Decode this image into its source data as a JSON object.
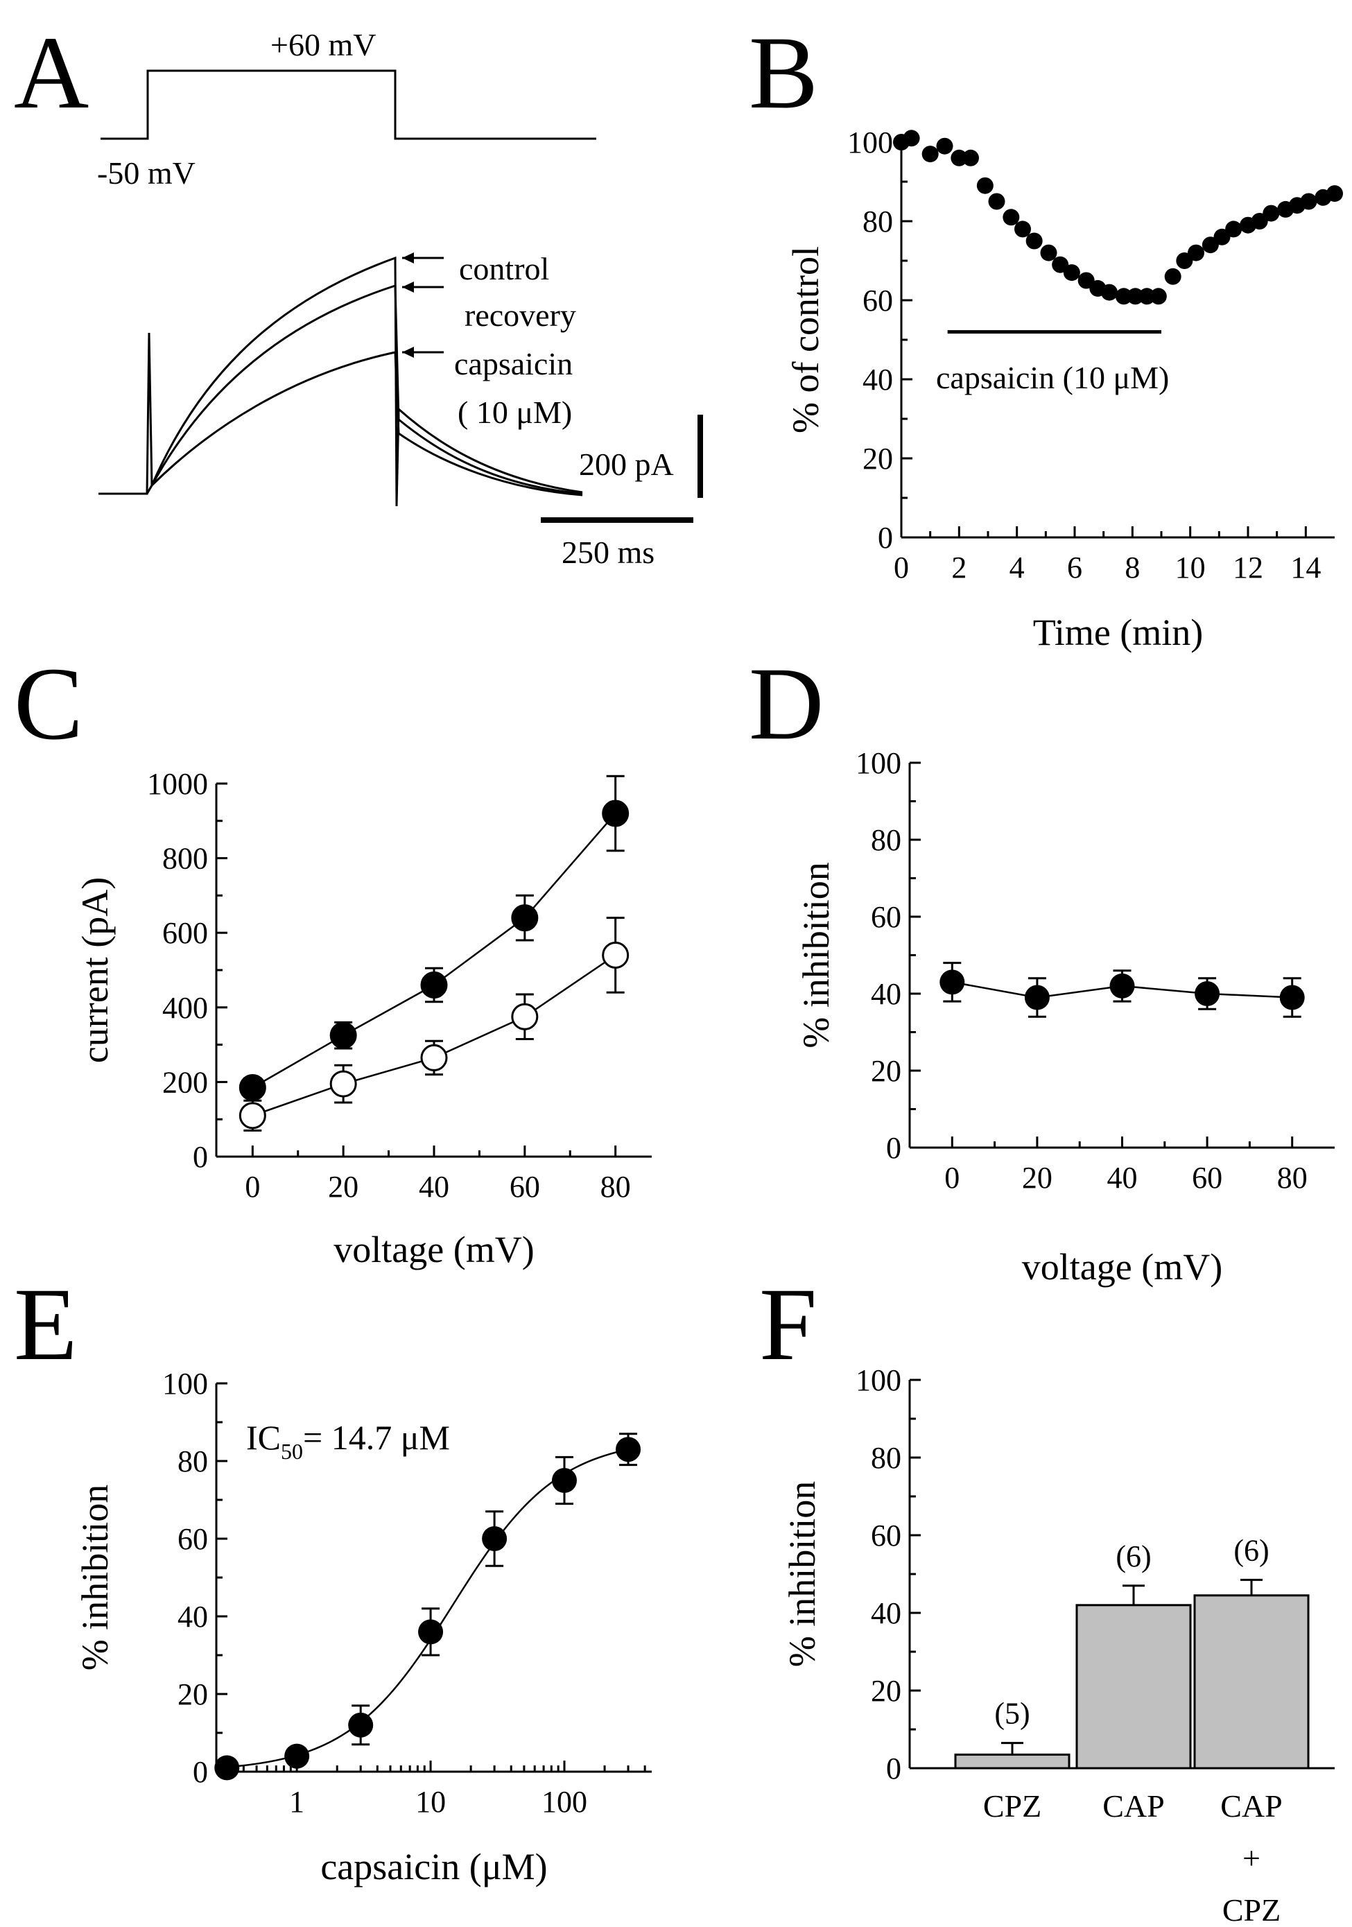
{
  "panels": {
    "A": {
      "letter": "A",
      "step_high": "+60 mV",
      "step_low": "-50 mV",
      "trace_labels": [
        "control",
        "recovery",
        "capsaicin"
      ],
      "concentration": "( 10 μM)",
      "scale_current": "200 pA",
      "scale_time": "250 ms"
    },
    "B": {
      "letter": "B",
      "bar_label": "capsaicin (10 μM)"
    },
    "C": {
      "letter": "C"
    },
    "D": {
      "letter": "D"
    },
    "E": {
      "letter": "E",
      "annotation": {
        "ic": "IC",
        "sub": "50",
        "value": "= 14.7 μM"
      }
    },
    "F": {
      "letter": "F"
    }
  },
  "chart_data": [
    {
      "panel": "B",
      "type": "scatter",
      "xlabel": "Time (min)",
      "ylabel": "% of control",
      "xlim": [
        0,
        15
      ],
      "ylim": [
        0,
        100
      ],
      "xticks": [
        "0",
        "2",
        "4",
        "6",
        "8",
        "10",
        "12",
        "14"
      ],
      "yticks": [
        "0",
        "20",
        "40",
        "60",
        "80",
        "100"
      ],
      "x": [
        0,
        0.35,
        1.0,
        1.5,
        2.0,
        2.4,
        2.9,
        3.3,
        3.8,
        4.2,
        4.6,
        5.1,
        5.5,
        5.9,
        6.4,
        6.8,
        7.2,
        7.7,
        8.1,
        8.5,
        8.9,
        9.4,
        9.8,
        10.2,
        10.7,
        11.1,
        11.5,
        12.0,
        12.4,
        12.8,
        13.3,
        13.7,
        14.1,
        14.6,
        15.0
      ],
      "y": [
        100,
        101,
        97,
        99,
        96,
        96,
        89,
        85,
        81,
        78,
        75,
        72,
        69,
        67,
        65,
        63,
        62,
        61,
        61,
        61,
        61,
        66,
        70,
        72,
        74,
        76,
        78,
        79,
        80,
        82,
        83,
        84,
        85,
        86,
        87
      ],
      "bar": {
        "x": [
          1.6,
          9.0
        ],
        "y": 52
      }
    },
    {
      "panel": "C",
      "type": "line",
      "xlabel": "voltage (mV)",
      "ylabel": "current (pA)",
      "xlim": [
        -8,
        88
      ],
      "ylim": [
        0,
        1000
      ],
      "xticks": [
        "0",
        "20",
        "40",
        "60",
        "80"
      ],
      "yticks": [
        "0",
        "200",
        "400",
        "600",
        "800",
        "1000"
      ],
      "x": [
        0,
        20,
        40,
        60,
        80
      ],
      "series": [
        {
          "marker": "filled",
          "values": [
            185,
            325,
            460,
            640,
            920
          ],
          "errors": [
            25,
            35,
            45,
            60,
            100
          ]
        },
        {
          "marker": "open",
          "values": [
            110,
            195,
            265,
            375,
            540
          ],
          "errors": [
            40,
            50,
            45,
            60,
            100
          ]
        }
      ]
    },
    {
      "panel": "D",
      "type": "line",
      "xlabel": "voltage (mV)",
      "ylabel": "% inhibition",
      "xlim": [
        -10,
        90
      ],
      "ylim": [
        0,
        100
      ],
      "xticks": [
        "0",
        "20",
        "40",
        "60",
        "80"
      ],
      "yticks": [
        "0",
        "20",
        "40",
        "60",
        "80",
        "100"
      ],
      "x": [
        0,
        20,
        40,
        60,
        80
      ],
      "series": [
        {
          "marker": "filled",
          "values": [
            43,
            39,
            42,
            40,
            39
          ],
          "errors": [
            5,
            5,
            4,
            4,
            5
          ]
        }
      ]
    },
    {
      "panel": "E",
      "type": "scatter",
      "xlabel": "capsaicin (μM)",
      "ylabel": "% inhibition",
      "xscale": "log",
      "xlim": [
        0.25,
        450
      ],
      "ylim": [
        0,
        100
      ],
      "xticks": [
        "1",
        "10",
        "100"
      ],
      "yticks": [
        "0",
        "20",
        "40",
        "60",
        "80",
        "100"
      ],
      "x": [
        0.3,
        1,
        3,
        10,
        30,
        100,
        300
      ],
      "y": [
        1,
        4,
        12,
        36,
        60,
        75,
        83
      ],
      "errors": [
        1,
        2,
        5,
        6,
        7,
        6,
        4
      ],
      "fit": {
        "ic50": 14.7,
        "max": 86,
        "hill": 1.1
      }
    },
    {
      "panel": "F",
      "type": "bar",
      "ylabel": "% inhibition",
      "ylim": [
        0,
        100
      ],
      "yticks": [
        "0",
        "20",
        "40",
        "60",
        "80",
        "100"
      ],
      "categories": [
        [
          "CPZ"
        ],
        [
          "CAP"
        ],
        [
          "CAP",
          "+",
          "CPZ"
        ]
      ],
      "values": [
        3.5,
        42,
        44.5
      ],
      "errors": [
        3,
        5,
        4
      ],
      "n_labels": [
        "(5)",
        "(6)",
        "(6)"
      ],
      "bar_color": "#c0c0c0"
    }
  ]
}
